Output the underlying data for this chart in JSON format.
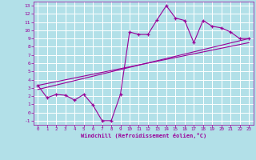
{
  "title": "",
  "xlabel": "Windchill (Refroidissement éolien,°C)",
  "bg_color": "#b2e0e8",
  "grid_color": "#ffffff",
  "line_color": "#990099",
  "xlim": [
    -0.5,
    23.5
  ],
  "ylim": [
    -1.5,
    13.5
  ],
  "xticks": [
    0,
    1,
    2,
    3,
    4,
    5,
    6,
    7,
    8,
    9,
    10,
    11,
    12,
    13,
    14,
    15,
    16,
    17,
    18,
    19,
    20,
    21,
    22,
    23
  ],
  "yticks": [
    -1,
    0,
    1,
    2,
    3,
    4,
    5,
    6,
    7,
    8,
    9,
    10,
    11,
    12,
    13
  ],
  "data_line": {
    "x": [
      0,
      1,
      2,
      3,
      4,
      5,
      6,
      7,
      8,
      9,
      10,
      11,
      12,
      13,
      14,
      15,
      16,
      17,
      18,
      19,
      20,
      21,
      22,
      23
    ],
    "y": [
      3.3,
      1.8,
      2.2,
      2.1,
      1.5,
      2.2,
      0.9,
      -1.0,
      -1.0,
      2.2,
      9.8,
      9.5,
      9.5,
      11.3,
      13.0,
      11.5,
      11.2,
      8.5,
      11.2,
      10.5,
      10.3,
      9.8,
      9.0,
      9.0
    ]
  },
  "trend_line1": {
    "x": [
      0,
      23
    ],
    "y": [
      2.8,
      9.0
    ]
  },
  "trend_line2": {
    "x": [
      0,
      23
    ],
    "y": [
      3.3,
      8.5
    ]
  }
}
